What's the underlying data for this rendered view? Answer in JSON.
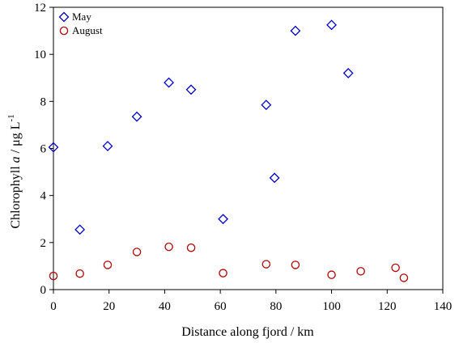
{
  "chart_data": {
    "type": "scatter",
    "xlabel": "Distance along fjord / km",
    "ylabel": {
      "prefix": "Chlorophyll ",
      "italic": "a",
      "units": " / μg L",
      "superscript": "-1"
    },
    "xlim": [
      0,
      140
    ],
    "ylim": [
      0,
      12
    ],
    "xticks": [
      0,
      20,
      40,
      60,
      80,
      100,
      120,
      140
    ],
    "yticks": [
      0,
      2,
      4,
      6,
      8,
      10,
      12
    ],
    "legend_position": "top-left",
    "grid": false,
    "series": [
      {
        "name": "May",
        "marker": "diamond",
        "color": "#0000cc",
        "points": [
          [
            0,
            6.05
          ],
          [
            9.5,
            2.55
          ],
          [
            19.5,
            6.1
          ],
          [
            30,
            7.35
          ],
          [
            41.5,
            8.8
          ],
          [
            49.5,
            8.5
          ],
          [
            61,
            3.0
          ],
          [
            76.5,
            7.85
          ],
          [
            79.5,
            4.75
          ],
          [
            87,
            11.0
          ],
          [
            100,
            11.25
          ],
          [
            106,
            9.2
          ]
        ]
      },
      {
        "name": "August",
        "marker": "circle",
        "color": "#b00000",
        "points": [
          [
            0,
            0.58
          ],
          [
            9.5,
            0.68
          ],
          [
            19.5,
            1.05
          ],
          [
            30,
            1.6
          ],
          [
            41.5,
            1.82
          ],
          [
            49.5,
            1.78
          ],
          [
            61,
            0.7
          ],
          [
            76.5,
            1.08
          ],
          [
            87,
            1.05
          ],
          [
            100,
            0.63
          ],
          [
            110.5,
            0.78
          ],
          [
            123,
            0.93
          ],
          [
            126,
            0.5
          ]
        ]
      }
    ]
  }
}
